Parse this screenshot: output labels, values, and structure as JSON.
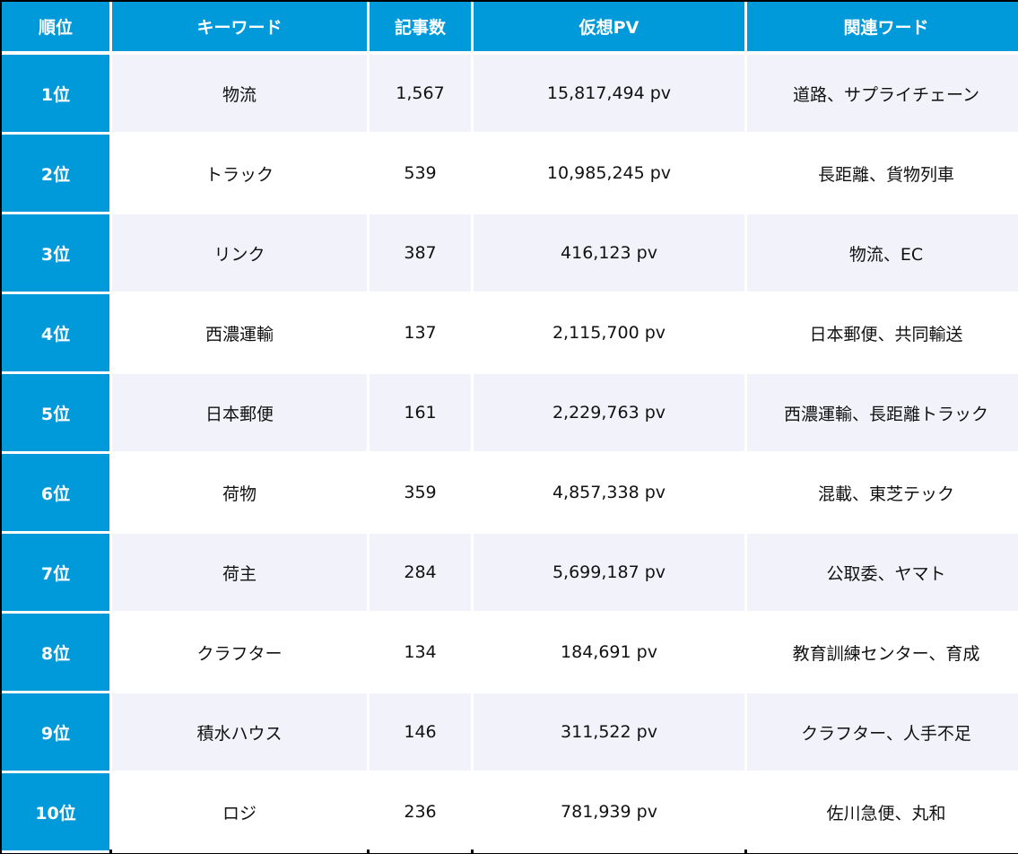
{
  "table": {
    "headers": [
      "順位",
      "キーワード",
      "記事数",
      "仮想PV",
      "関連ワード"
    ],
    "colors": {
      "header_bg": "#009ADB",
      "header_text": "#FFFFFF",
      "row_tint": "#F2F3FA",
      "row_plain": "#FFFFFF",
      "border": "#000000"
    },
    "rows": [
      {
        "rank": "1位",
        "keyword": "物流",
        "articles": "1,567",
        "pv": "15,817,494 pv",
        "related": "道路、サプライチェーン"
      },
      {
        "rank": "2位",
        "keyword": "トラック",
        "articles": "539",
        "pv": "10,985,245 pv",
        "related": "長距離、貨物列車"
      },
      {
        "rank": "3位",
        "keyword": "リンク",
        "articles": "387",
        "pv": "416,123 pv",
        "related": "物流、EC"
      },
      {
        "rank": "4位",
        "keyword": "西濃運輸",
        "articles": "137",
        "pv": "2,115,700 pv",
        "related": "日本郵便、共同輸送"
      },
      {
        "rank": "5位",
        "keyword": "日本郵便",
        "articles": "161",
        "pv": "2,229,763 pv",
        "related": "西濃運輸、長距離トラック"
      },
      {
        "rank": "6位",
        "keyword": "荷物",
        "articles": "359",
        "pv": "4,857,338 pv",
        "related": "混載、東芝テック"
      },
      {
        "rank": "7位",
        "keyword": "荷主",
        "articles": "284",
        "pv": "5,699,187 pv",
        "related": "公取委、ヤマト"
      },
      {
        "rank": "8位",
        "keyword": "クラフター",
        "articles": "134",
        "pv": "184,691 pv",
        "related": "教育訓練センター、育成"
      },
      {
        "rank": "9位",
        "keyword": "積水ハウス",
        "articles": "146",
        "pv": "311,522 pv",
        "related": "クラフター、人手不足"
      },
      {
        "rank": "10位",
        "keyword": "ロジ",
        "articles": "236",
        "pv": "781,939 pv",
        "related": "佐川急便、丸和"
      }
    ]
  }
}
